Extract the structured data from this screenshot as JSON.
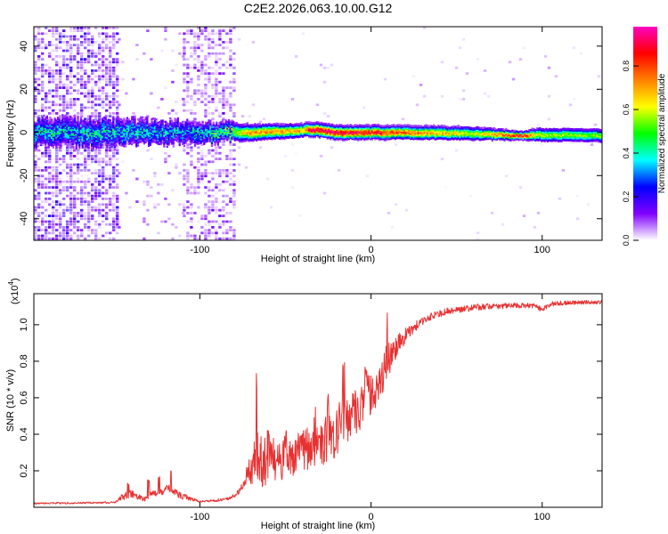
{
  "figure": {
    "title": "C2E2.2026.063.10.00.G12"
  },
  "chart_data": [
    {
      "type": "heatmap",
      "title": "C2E2.2026.063.10.00.G12",
      "xlabel": "Height of straight line (km)",
      "ylabel": "Frequency (Hz)",
      "xlim": [
        -197,
        135
      ],
      "ylim": [
        -50,
        49
      ],
      "xticks": [
        -100,
        0,
        100
      ],
      "xtick_labels": [
        "-100",
        "0",
        "100"
      ],
      "yticks": [
        -40,
        -20,
        0,
        20,
        40
      ],
      "ytick_labels": [
        "-40",
        "-20",
        "0",
        "20",
        "40"
      ],
      "colorbar": {
        "label": "Normalized spectral amplitude",
        "range": [
          0,
          0.98
        ],
        "ticks": [
          0.0,
          0.2,
          0.4,
          0.6,
          0.8
        ],
        "tick_labels": [
          "0.0",
          "0.2",
          "0.4",
          "0.6",
          "0.8"
        ],
        "colormap": [
          "#ffffff",
          "#8000ff",
          "#0000ff",
          "#00ffff",
          "#00ff00",
          "#ffff00",
          "#ff8000",
          "#ff0000",
          "#ff00c0"
        ]
      },
      "scatter_regions": [
        {
          "x": [
            -197,
            -148
          ],
          "density": 0.6,
          "amplitude": 0.18
        },
        {
          "x": [
            -148,
            -110
          ],
          "density": 0.07,
          "amplitude": 0.1
        },
        {
          "x": [
            -110,
            -80
          ],
          "density": 0.45,
          "amplitude": 0.14
        },
        {
          "x": [
            -80,
            135
          ],
          "density": 0.015,
          "amplitude": 0.05
        }
      ],
      "band": [
        {
          "x": -148,
          "center": 0,
          "halfwidth": 6,
          "peak": 0.4
        },
        {
          "x": -110,
          "center": 0,
          "halfwidth": 5,
          "peak": 0.35
        },
        {
          "x": -80,
          "center": 0,
          "halfwidth": 3.5,
          "peak": 0.55
        },
        {
          "x": -70,
          "center": 0,
          "halfwidth": 3,
          "peak": 0.75
        },
        {
          "x": -40,
          "center": 1,
          "halfwidth": 2.5,
          "peak": 0.7
        },
        {
          "x": -35,
          "center": 1.5,
          "halfwidth": 2.5,
          "peak": 0.95
        },
        {
          "x": -20,
          "center": 0,
          "halfwidth": 2.5,
          "peak": 0.95
        },
        {
          "x": 20,
          "center": 0,
          "halfwidth": 2.5,
          "peak": 0.8
        },
        {
          "x": 60,
          "center": -0.5,
          "halfwidth": 2.5,
          "peak": 0.6
        },
        {
          "x": 88,
          "center": -1.5,
          "halfwidth": 1.5,
          "peak": 0.9
        },
        {
          "x": 98,
          "center": -1,
          "halfwidth": 2.5,
          "peak": 0.6
        },
        {
          "x": 135,
          "center": -1.5,
          "halfwidth": 2.5,
          "peak": 0.55
        }
      ]
    },
    {
      "type": "line",
      "xlabel": "Height of straight line (km)",
      "ylabel": "SNR (10 * v/v)",
      "y_exponent_label": "(x10",
      "y_exponent": "4",
      "y_exponent_close": ")",
      "xlim": [
        -197,
        135
      ],
      "ylim": [
        0.0,
        1.17
      ],
      "xticks": [
        -100,
        0,
        100
      ],
      "xtick_labels": [
        "-100",
        "0",
        "100"
      ],
      "yticks": [
        0.2,
        0.4,
        0.6,
        0.8,
        1.0
      ],
      "ytick_labels": [
        "0.2",
        "0.4",
        "0.6",
        "0.8",
        "1.0"
      ],
      "series": [
        {
          "name": "SNR",
          "color": "#e83232",
          "baseline": [
            [
              -197,
              0.02
            ],
            [
              -150,
              0.025
            ],
            [
              -145,
              0.05
            ],
            [
              -140,
              0.07
            ],
            [
              -133,
              0.04
            ],
            [
              -128,
              0.07
            ],
            [
              -122,
              0.08
            ],
            [
              -118,
              0.1
            ],
            [
              -112,
              0.06
            ],
            [
              -100,
              0.03
            ],
            [
              -85,
              0.04
            ],
            [
              -78,
              0.07
            ],
            [
              -72,
              0.15
            ],
            [
              -67,
              0.25
            ],
            [
              -62,
              0.2
            ],
            [
              -55,
              0.22
            ],
            [
              -45,
              0.25
            ],
            [
              -35,
              0.3
            ],
            [
              -25,
              0.33
            ],
            [
              -20,
              0.38
            ],
            [
              -15,
              0.45
            ],
            [
              -8,
              0.5
            ],
            [
              0,
              0.58
            ],
            [
              5,
              0.66
            ],
            [
              10,
              0.78
            ],
            [
              15,
              0.85
            ],
            [
              20,
              0.93
            ],
            [
              28,
              1.0
            ],
            [
              35,
              1.04
            ],
            [
              45,
              1.07
            ],
            [
              60,
              1.09
            ],
            [
              80,
              1.1
            ],
            [
              95,
              1.1
            ],
            [
              100,
              1.08
            ],
            [
              105,
              1.11
            ],
            [
              120,
              1.12
            ],
            [
              135,
              1.12
            ]
          ],
          "noise": [
            [
              -197,
              0.01
            ],
            [
              -150,
              0.01
            ],
            [
              -145,
              0.04
            ],
            [
              -112,
              0.04
            ],
            [
              -100,
              0.01
            ],
            [
              -80,
              0.02
            ],
            [
              -75,
              0.06
            ],
            [
              -68,
              0.25
            ],
            [
              -65,
              0.3
            ],
            [
              -50,
              0.22
            ],
            [
              -30,
              0.25
            ],
            [
              -20,
              0.28
            ],
            [
              -10,
              0.28
            ],
            [
              0,
              0.25
            ],
            [
              10,
              0.2
            ],
            [
              20,
              0.08
            ],
            [
              30,
              0.04
            ],
            [
              135,
              0.02
            ]
          ],
          "spikes": [
            [
              -142,
              0.14
            ],
            [
              -130,
              0.16
            ],
            [
              -124,
              0.18
            ],
            [
              -117,
              0.22
            ],
            [
              -67,
              0.74
            ],
            [
              -60,
              0.45
            ],
            [
              -50,
              0.42
            ],
            [
              -33,
              0.55
            ],
            [
              -25,
              0.62
            ],
            [
              -16,
              0.85
            ],
            [
              -3,
              0.83
            ],
            [
              9,
              1.08
            ],
            [
              18,
              0.95
            ]
          ]
        }
      ]
    }
  ]
}
